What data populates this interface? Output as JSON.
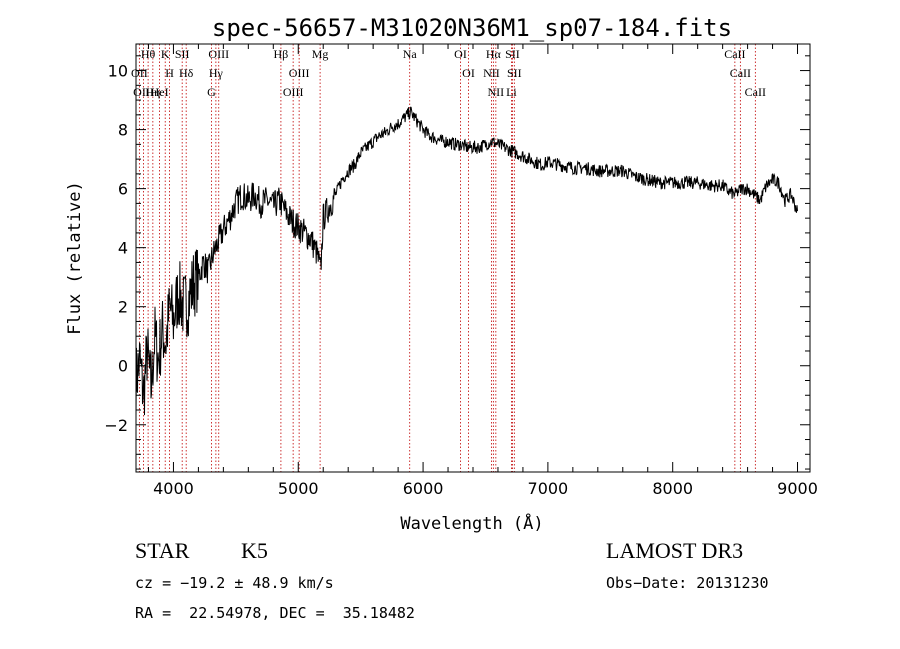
{
  "chart_data": {
    "type": "line",
    "title": "spec-56657-M31020N36M1_sp07-184.fits",
    "xlabel": "Wavelength (Å)",
    "ylabel": "Flux (relative)",
    "xlim": [
      3700,
      9100
    ],
    "ylim": [
      -3.6,
      10.9
    ],
    "xticks": [
      4000,
      5000,
      6000,
      7000,
      8000,
      9000
    ],
    "yticks": [
      -2,
      0,
      2,
      4,
      6,
      8,
      10
    ],
    "ytick_labels": [
      "−2",
      "0",
      "2",
      "4",
      "6",
      "8",
      "10"
    ],
    "grid": false,
    "series": [
      {
        "name": "spectrum",
        "x": [
          3700,
          3730,
          3760,
          3790,
          3820,
          3850,
          3880,
          3910,
          3940,
          3970,
          4000,
          4040,
          4080,
          4120,
          4160,
          4200,
          4240,
          4280,
          4320,
          4360,
          4400,
          4450,
          4500,
          4550,
          4600,
          4650,
          4700,
          4750,
          4800,
          4850,
          4900,
          4950,
          5000,
          5050,
          5100,
          5150,
          5180,
          5200,
          5250,
          5300,
          5350,
          5400,
          5450,
          5500,
          5550,
          5600,
          5650,
          5700,
          5750,
          5800,
          5850,
          5900,
          5950,
          6000,
          6050,
          6100,
          6150,
          6200,
          6250,
          6300,
          6350,
          6400,
          6450,
          6500,
          6550,
          6600,
          6650,
          6700,
          6750,
          6800,
          6850,
          6900,
          6950,
          7000,
          7100,
          7200,
          7300,
          7400,
          7500,
          7600,
          7700,
          7800,
          7900,
          8000,
          8100,
          8200,
          8300,
          8400,
          8450,
          8500,
          8550,
          8600,
          8650,
          8700,
          8750,
          8800,
          8850,
          8900,
          8950,
          9000
        ],
        "y": [
          -0.5,
          0.2,
          -1.0,
          0.5,
          -0.8,
          1.0,
          0.2,
          1.2,
          0.8,
          2.0,
          1.5,
          2.5,
          2.0,
          2.2,
          2.8,
          3.0,
          3.5,
          3.2,
          3.8,
          4.2,
          4.6,
          5.0,
          5.5,
          5.8,
          5.6,
          5.8,
          5.5,
          5.6,
          5.4,
          5.6,
          5.2,
          4.9,
          4.7,
          4.5,
          4.3,
          3.8,
          3.2,
          5.0,
          5.4,
          5.8,
          6.3,
          6.6,
          6.8,
          7.2,
          7.4,
          7.6,
          7.8,
          7.9,
          8.1,
          8.2,
          8.4,
          8.6,
          8.3,
          8.0,
          7.8,
          7.7,
          7.6,
          7.6,
          7.5,
          7.5,
          7.4,
          7.4,
          7.4,
          7.5,
          7.6,
          7.5,
          7.4,
          7.3,
          7.2,
          7.1,
          7.0,
          6.9,
          6.8,
          6.9,
          6.8,
          6.7,
          6.7,
          6.6,
          6.6,
          6.6,
          6.4,
          6.3,
          6.2,
          6.2,
          6.2,
          6.2,
          6.1,
          6.1,
          5.9,
          5.8,
          6.0,
          6.0,
          5.8,
          5.6,
          6.1,
          6.3,
          6.2,
          5.6,
          5.8,
          5.2
        ]
      }
    ],
    "line_markers": [
      {
        "label": "Hθ",
        "x": 3797
      },
      {
        "label": "OII",
        "x": 3727
      },
      {
        "label": "OIII",
        "x": 3760
      },
      {
        "label": "K",
        "x": 3934
      },
      {
        "label": "H",
        "x": 3969
      },
      {
        "label": "HeI",
        "x": 3889
      },
      {
        "label": "Hη",
        "x": 3835
      },
      {
        "label": "SII",
        "x": 4070
      },
      {
        "label": "Hδ",
        "x": 4102
      },
      {
        "label": "OIII",
        "x": 4363
      },
      {
        "label": "Hγ",
        "x": 4340
      },
      {
        "label": "G",
        "x": 4305
      },
      {
        "label": "Hβ",
        "x": 4861
      },
      {
        "label": "OIII",
        "x": 5007
      },
      {
        "label": "OIII",
        "x": 4959
      },
      {
        "label": "Mg",
        "x": 5175
      },
      {
        "label": "Na",
        "x": 5893
      },
      {
        "label": "OI",
        "x": 6300
      },
      {
        "label": "OI",
        "x": 6364
      },
      {
        "label": "Hα",
        "x": 6563
      },
      {
        "label": "NII",
        "x": 6548
      },
      {
        "label": "NII",
        "x": 6583
      },
      {
        "label": "SII",
        "x": 6716
      },
      {
        "label": "SII",
        "x": 6731
      },
      {
        "label": "Li",
        "x": 6708
      },
      {
        "label": "CaII",
        "x": 8498
      },
      {
        "label": "CaII",
        "x": 8542
      },
      {
        "label": "CaII",
        "x": 8662
      }
    ]
  },
  "info": {
    "object_class": "STAR",
    "subclass": "K5",
    "survey": "LAMOST DR3",
    "cz": "cz = −19.2 ± 48.9 km/s",
    "obs_date": "Obs−Date: 20131230",
    "coords": "RA =  22.54978, DEC =  35.18482"
  },
  "colors": {
    "spectrum": "#000000",
    "marker": "#c00000",
    "axis": "#000000"
  }
}
